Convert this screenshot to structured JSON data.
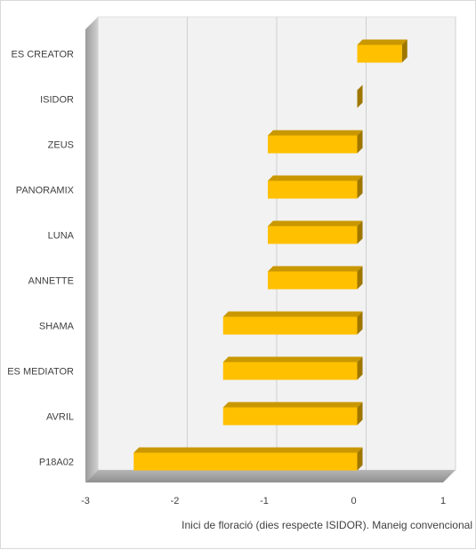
{
  "chart_data": {
    "type": "bar",
    "orientation": "horizontal",
    "style": "3d",
    "categories": [
      "ES CREATOR",
      "ISIDOR",
      "ZEUS",
      "PANORAMIX",
      "LUNA",
      "ANNETTE",
      "SHAMA",
      "ES MEDIATOR",
      "AVRIL",
      "P18A02"
    ],
    "values": [
      0.5,
      0,
      -1,
      -1,
      -1,
      -1,
      -1.5,
      -1.5,
      -1.5,
      -2.5
    ],
    "xlabel": "Inici de floració (dies respecte ISIDOR). Maneig convencional",
    "ylabel": "",
    "xlim": [
      -3,
      1
    ],
    "xticks": [
      "-3",
      "-2",
      "-1",
      "0",
      "1"
    ],
    "grid": true,
    "bar_color": "#FFC000"
  }
}
